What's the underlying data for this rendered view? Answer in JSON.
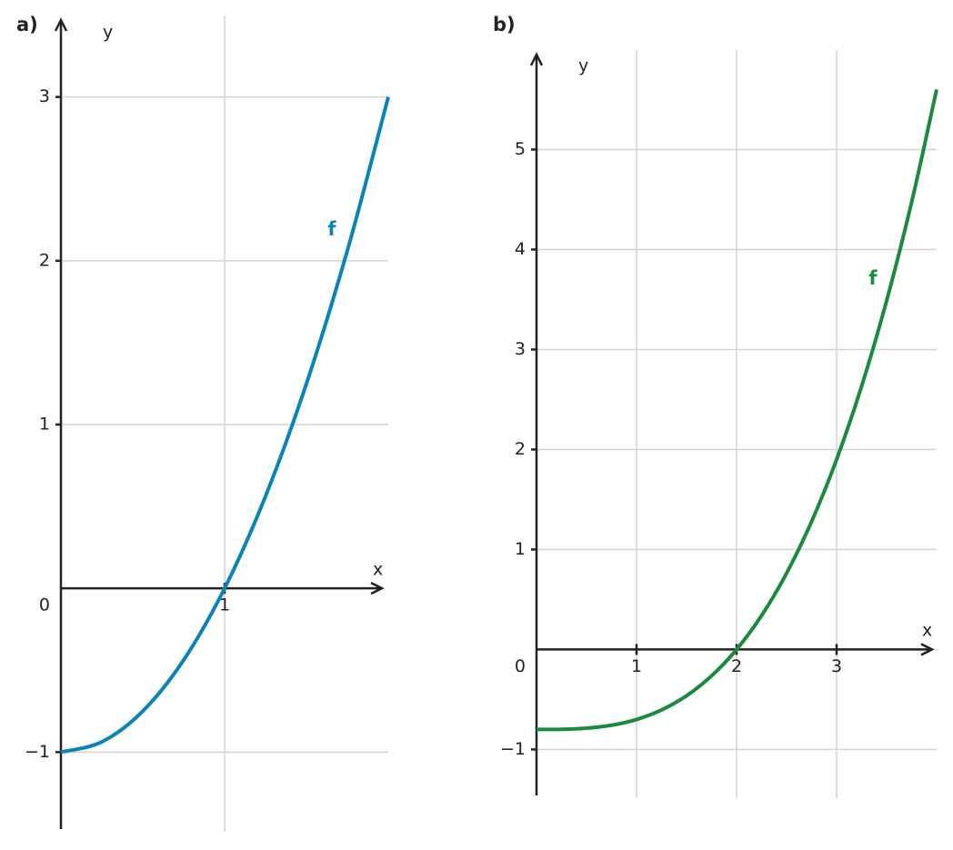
{
  "chart_data": [
    {
      "type": "line",
      "panel_label": "a)",
      "x_label": "x",
      "y_label": "y",
      "x": [
        0,
        0.25,
        0.5,
        0.75,
        1,
        1.25,
        1.5,
        1.75,
        2
      ],
      "series": [
        {
          "name": "f",
          "color": "#0a84b8",
          "values": [
            -1,
            -0.9375,
            -0.75,
            -0.4375,
            0,
            0.5625,
            1.25,
            2.0625,
            3
          ]
        }
      ],
      "xlim": [
        0,
        2
      ],
      "ylim": [
        -1.47,
        3.47
      ],
      "xticks": [
        1
      ],
      "yticks": [
        {
          "value": -1,
          "label": "−1"
        },
        0,
        1,
        2,
        3
      ],
      "grid": true
    },
    {
      "type": "line",
      "panel_label": "b)",
      "x_label": "x",
      "y_label": "y",
      "x": [
        0,
        0.25,
        0.5,
        0.75,
        1,
        1.25,
        1.5,
        1.75,
        2,
        2.25,
        2.5,
        2.75,
        3,
        3.25,
        3.5,
        3.75,
        4
      ],
      "series": [
        {
          "name": "f",
          "color": "#1a8a3e",
          "values": [
            -0.8,
            -0.7984375,
            -0.7875,
            -0.7578125,
            -0.7,
            -0.6046875,
            -0.4625,
            -0.2640625,
            0,
            0.3390625,
            0.7625,
            1.2796875,
            1.9,
            2.6328125,
            3.4875,
            4.4734375,
            5.6
          ]
        }
      ],
      "xlim": [
        0,
        4
      ],
      "ylim": [
        -1.46,
        5.95
      ],
      "xticks": [
        1,
        2,
        3
      ],
      "yticks": [
        {
          "value": -1,
          "label": "−1"
        },
        0,
        1,
        2,
        3,
        4,
        5
      ],
      "grid": true
    }
  ]
}
